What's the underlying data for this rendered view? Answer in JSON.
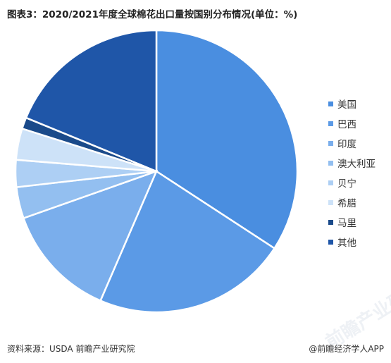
{
  "title": "图表3：2020/2021年度全球棉花出口量按国别分布情况(单位：%)",
  "chart_data": {
    "type": "pie",
    "title": "图表3：2020/2021年度全球棉花出口量按国别分布情况(单位：%)",
    "legend_position": "right",
    "start_angle_deg": 0,
    "direction": "clockwise",
    "slices": [
      {
        "label": "美国",
        "value": 34.2,
        "color": "#4a8ee0"
      },
      {
        "label": "巴西",
        "value": 22.3,
        "color": "#5b9ae6"
      },
      {
        "label": "印度",
        "value": 13.1,
        "color": "#7aaeec"
      },
      {
        "label": "澳大利亚",
        "value": 3.6,
        "color": "#93bff0"
      },
      {
        "label": "贝宁",
        "value": 3.1,
        "color": "#adcff4"
      },
      {
        "label": "希腊",
        "value": 3.6,
        "color": "#cde2f8"
      },
      {
        "label": "马里",
        "value": 1.3,
        "color": "#1a4a8a"
      },
      {
        "label": "其他",
        "value": 18.8,
        "color": "#1f56a8"
      }
    ]
  },
  "watermark": "前瞻产业研究院",
  "footer": {
    "source": "资料来源：USDA 前瞻产业研究院",
    "brand": "@前瞻经济学人APP"
  }
}
